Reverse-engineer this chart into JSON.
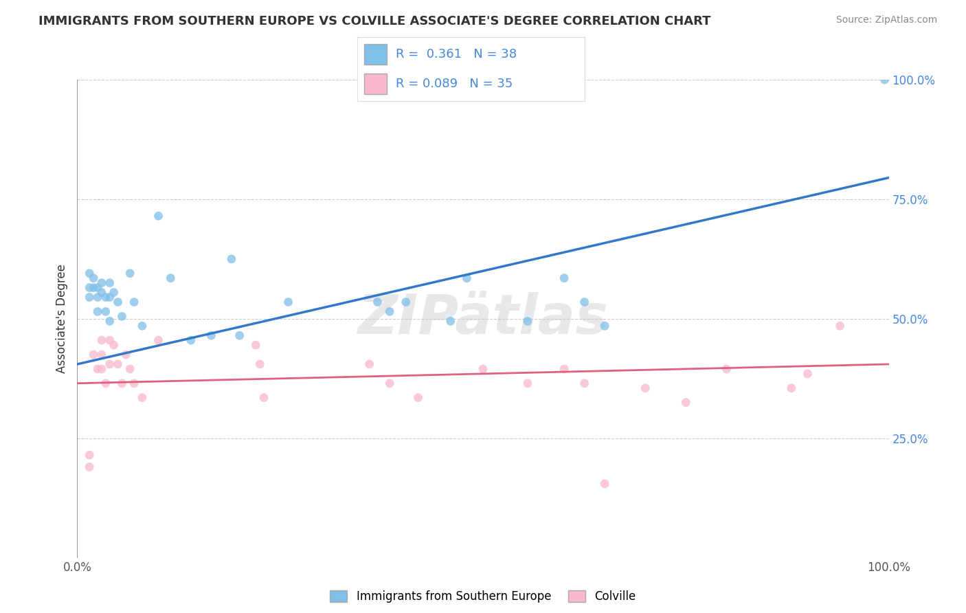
{
  "title": "IMMIGRANTS FROM SOUTHERN EUROPE VS COLVILLE ASSOCIATE'S DEGREE CORRELATION CHART",
  "source_text": "Source: ZipAtlas.com",
  "ylabel": "Associate's Degree",
  "watermark": "ZIPatlas",
  "xlim": [
    0.0,
    1.0
  ],
  "ylim": [
    0.0,
    1.0
  ],
  "xtick_labels": [
    "0.0%",
    "100.0%"
  ],
  "xtick_positions": [
    0.0,
    1.0
  ],
  "ytick_positions": [
    0.25,
    0.5,
    0.75,
    1.0
  ],
  "right_tick_labels": [
    "25.0%",
    "50.0%",
    "75.0%",
    "100.0%"
  ],
  "blue_scatter_x": [
    0.015,
    0.015,
    0.015,
    0.02,
    0.02,
    0.025,
    0.025,
    0.025,
    0.03,
    0.03,
    0.035,
    0.035,
    0.04,
    0.04,
    0.04,
    0.045,
    0.05,
    0.055,
    0.065,
    0.07,
    0.08,
    0.1,
    0.115,
    0.14,
    0.165,
    0.19,
    0.2,
    0.26,
    0.37,
    0.385,
    0.405,
    0.46,
    0.48,
    0.555,
    0.6,
    0.625,
    0.65,
    0.995
  ],
  "blue_scatter_y": [
    0.595,
    0.565,
    0.545,
    0.585,
    0.565,
    0.565,
    0.545,
    0.515,
    0.575,
    0.555,
    0.545,
    0.515,
    0.575,
    0.545,
    0.495,
    0.555,
    0.535,
    0.505,
    0.595,
    0.535,
    0.485,
    0.715,
    0.585,
    0.455,
    0.465,
    0.625,
    0.465,
    0.535,
    0.535,
    0.515,
    0.535,
    0.495,
    0.585,
    0.495,
    0.585,
    0.535,
    0.485,
    1.0
  ],
  "pink_scatter_x": [
    0.015,
    0.015,
    0.02,
    0.025,
    0.03,
    0.03,
    0.03,
    0.035,
    0.04,
    0.04,
    0.045,
    0.05,
    0.055,
    0.06,
    0.065,
    0.07,
    0.08,
    0.1,
    0.22,
    0.225,
    0.23,
    0.36,
    0.385,
    0.42,
    0.5,
    0.555,
    0.6,
    0.625,
    0.65,
    0.7,
    0.75,
    0.8,
    0.88,
    0.9,
    0.94
  ],
  "pink_scatter_y": [
    0.215,
    0.19,
    0.425,
    0.395,
    0.455,
    0.425,
    0.395,
    0.365,
    0.455,
    0.405,
    0.445,
    0.405,
    0.365,
    0.425,
    0.395,
    0.365,
    0.335,
    0.455,
    0.445,
    0.405,
    0.335,
    0.405,
    0.365,
    0.335,
    0.395,
    0.365,
    0.395,
    0.365,
    0.155,
    0.355,
    0.325,
    0.395,
    0.355,
    0.385,
    0.485
  ],
  "blue_line_x": [
    0.0,
    1.0
  ],
  "blue_line_y": [
    0.405,
    0.795
  ],
  "pink_line_x": [
    0.0,
    1.0
  ],
  "pink_line_y": [
    0.365,
    0.405
  ],
  "blue_color": "#7fbfe8",
  "pink_color": "#f8b8cc",
  "blue_line_color": "#3478c8",
  "pink_line_color": "#e06080",
  "grid_color": "#cccccc",
  "background_color": "#ffffff",
  "title_color": "#333333",
  "right_label_color": "#4488dd",
  "scatter_size": 85
}
